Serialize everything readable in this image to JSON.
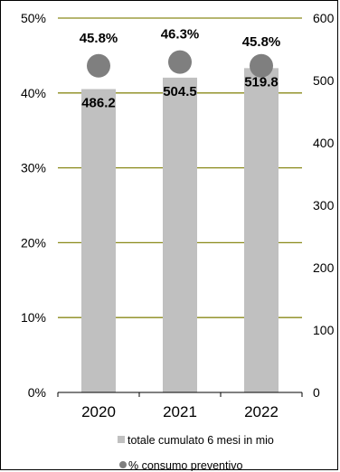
{
  "chart_data": {
    "type": "bar",
    "categories": [
      "2020",
      "2021",
      "2022"
    ],
    "series": [
      {
        "name": "totale cumulato 6 mesi in mio",
        "kind": "bar",
        "axis": "right",
        "values": [
          486.2,
          504.5,
          519.8
        ],
        "labels": [
          "486.2",
          "504.5",
          "519.8"
        ],
        "color": "#c0c0c0"
      },
      {
        "name": "% consumo preventivo",
        "kind": "marker",
        "axis": "left",
        "values": [
          45.8,
          46.3,
          45.8
        ],
        "labels": [
          "45.8%",
          "46.3%",
          "45.8%"
        ],
        "color": "#7f7f7f"
      }
    ],
    "y_left": {
      "min": 0,
      "max": 50,
      "ticks": [
        "0%",
        "10%",
        "20%",
        "30%",
        "40%",
        "50%"
      ]
    },
    "y_right": {
      "min": 0,
      "max": 600,
      "ticks": [
        "0",
        "100",
        "200",
        "300",
        "400",
        "500",
        "600"
      ]
    },
    "gridlines": true,
    "grid_color": "#8a8a1a",
    "legend_position": "bottom"
  }
}
